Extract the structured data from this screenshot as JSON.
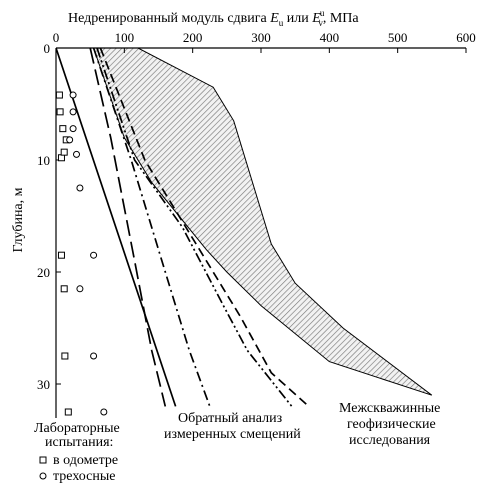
{
  "chart_data": {
    "type": "line",
    "title": "Недренированный модуль сдвига Eu или Evu, МПа",
    "title_parts": {
      "main": "Недренированный модуль сдвига ",
      "sym1": "E",
      "sub1": "u",
      "or": " или ",
      "sym2": "E",
      "sup2": "u",
      "sub2": "v",
      "unit": ", МПа"
    },
    "xlabel": "",
    "ylabel": "Глубина, м",
    "x_axis_position": "top",
    "y_axis_inverted": true,
    "xlim": [
      0,
      600
    ],
    "ylim": [
      0,
      32
    ],
    "x_ticks": [
      0,
      100,
      200,
      300,
      400,
      500,
      600
    ],
    "y_ticks": [
      0,
      10,
      20,
      30
    ],
    "grid": false,
    "series": [
      {
        "style": "solid",
        "points": [
          [
            0,
            0
          ],
          [
            175,
            32
          ]
        ]
      },
      {
        "style": "long-dash",
        "points": [
          [
            50,
            0
          ],
          [
            80,
            8
          ],
          [
            115,
            19
          ],
          [
            140,
            27
          ],
          [
            160,
            32
          ]
        ]
      },
      {
        "style": "dash-dot",
        "points": [
          [
            55,
            0
          ],
          [
            110,
            10
          ],
          [
            160,
            20
          ],
          [
            195,
            27
          ],
          [
            225,
            32
          ]
        ]
      },
      {
        "style": "dash-dot-dot",
        "points": [
          [
            60,
            0
          ],
          [
            115,
            10
          ],
          [
            185,
            16
          ],
          [
            245,
            23
          ],
          [
            280,
            27
          ],
          [
            345,
            32
          ]
        ]
      },
      {
        "style": "dash",
        "points": [
          [
            65,
            0
          ],
          [
            130,
            10
          ],
          [
            210,
            18
          ],
          [
            270,
            24
          ],
          [
            315,
            29
          ],
          [
            370,
            32
          ]
        ]
      }
    ],
    "band": {
      "style": "hatched",
      "lower": [
        [
          55,
          0
        ],
        [
          100,
          8
        ],
        [
          140,
          12
        ],
        [
          180,
          15
        ],
        [
          220,
          18
        ],
        [
          250,
          20
        ],
        [
          300,
          23
        ],
        [
          400,
          28
        ],
        [
          550,
          31
        ]
      ],
      "upper": [
        [
          120,
          0
        ],
        [
          230,
          3.5
        ],
        [
          260,
          6.5
        ],
        [
          290,
          12.5
        ],
        [
          315,
          17.5
        ],
        [
          350,
          21
        ],
        [
          420,
          25
        ],
        [
          550,
          31
        ]
      ]
    },
    "lab_tests": {
      "oedometer": [
        [
          5,
          4.2
        ],
        [
          6,
          5.7
        ],
        [
          10,
          7.2
        ],
        [
          15,
          8.2
        ],
        [
          8,
          9.8
        ],
        [
          12,
          9.3
        ],
        [
          8,
          18.5
        ],
        [
          12,
          21.5
        ],
        [
          13,
          27.5
        ],
        [
          18,
          32.5
        ]
      ],
      "triaxial": [
        [
          25,
          4.2
        ],
        [
          25,
          5.7
        ],
        [
          25,
          7.2
        ],
        [
          20,
          8.2
        ],
        [
          30,
          9.5
        ],
        [
          35,
          12.5
        ],
        [
          55,
          18.5
        ],
        [
          35,
          21.5
        ],
        [
          55,
          27.5
        ],
        [
          70,
          32.5
        ]
      ]
    },
    "annotations": {
      "lab_title_1": "Лабораторные",
      "lab_title_2": "испытания:",
      "lab_oedometer": "в одометре",
      "lab_triaxial": "трехосные",
      "back_1": "Обратный анализ",
      "back_2": "измеренных смещений",
      "cross_1": "Межскважинные",
      "cross_2": "геофизические",
      "cross_3": "исследования"
    }
  }
}
